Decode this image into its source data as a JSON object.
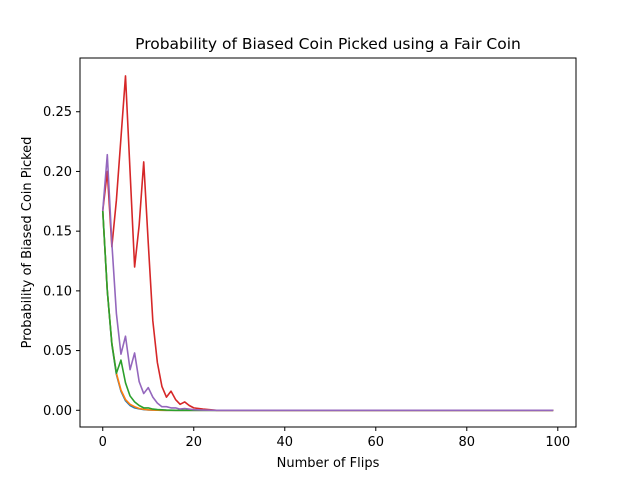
{
  "chart_data": {
    "type": "line",
    "title": "Probability of Biased Coin Picked using a Fair Coin",
    "xlabel": "Number of Flips",
    "ylabel": "Probability of Biased Coin Picked",
    "xlim": [
      -5,
      104
    ],
    "ylim": [
      -0.014,
      0.295
    ],
    "x_ticks": [
      0,
      20,
      40,
      60,
      80,
      100
    ],
    "x_tick_labels": [
      "0",
      "20",
      "40",
      "60",
      "80",
      "100"
    ],
    "y_ticks": [
      0.0,
      0.05,
      0.1,
      0.15,
      0.2,
      0.25
    ],
    "y_tick_labels": [
      "0.00",
      "0.05",
      "0.10",
      "0.15",
      "0.20",
      "0.25"
    ],
    "grid": false,
    "legend": "none",
    "series": [
      {
        "color": "#1f77b4",
        "x": [
          0,
          1,
          2,
          3,
          4,
          5,
          6,
          7,
          8,
          9,
          10,
          12,
          14,
          16,
          18,
          20,
          25,
          99
        ],
        "values": [
          0.167,
          0.1,
          0.055,
          0.03,
          0.016,
          0.008,
          0.004,
          0.002,
          0.0012,
          0.0006,
          0.0003,
          0.0001,
          0.0,
          0.0,
          0.0,
          0.0,
          0.0,
          0.0
        ]
      },
      {
        "color": "#ff7f0e",
        "x": [
          0,
          1,
          2,
          3,
          4,
          5,
          6,
          7,
          8,
          9,
          10,
          12,
          14,
          16,
          20,
          25,
          99
        ],
        "values": [
          0.167,
          0.1,
          0.056,
          0.031,
          0.017,
          0.009,
          0.005,
          0.003,
          0.0015,
          0.0008,
          0.0004,
          0.0001,
          0.0,
          0.0,
          0.0,
          0.0,
          0.0
        ]
      },
      {
        "color": "#2ca02c",
        "x": [
          0,
          1,
          2,
          3,
          4,
          5,
          6,
          7,
          8,
          9,
          10,
          11,
          12,
          14,
          16,
          20,
          25,
          99
        ],
        "values": [
          0.167,
          0.1,
          0.056,
          0.031,
          0.042,
          0.023,
          0.012,
          0.007,
          0.004,
          0.002,
          0.002,
          0.001,
          0.0006,
          0.0002,
          0.0,
          0.0,
          0.0,
          0.0
        ]
      },
      {
        "color": "#d62728",
        "x": [
          0,
          1,
          2,
          3,
          4,
          5,
          6,
          7,
          8,
          9,
          10,
          11,
          12,
          13,
          14,
          15,
          16,
          17,
          18,
          19,
          20,
          22,
          25,
          99
        ],
        "values": [
          0.167,
          0.2,
          0.137,
          0.176,
          0.228,
          0.28,
          0.2,
          0.12,
          0.155,
          0.208,
          0.14,
          0.075,
          0.04,
          0.02,
          0.011,
          0.016,
          0.009,
          0.005,
          0.007,
          0.004,
          0.002,
          0.001,
          0.0,
          0.0
        ]
      },
      {
        "color": "#9467bd",
        "x": [
          0,
          1,
          2,
          3,
          4,
          5,
          6,
          7,
          8,
          9,
          10,
          11,
          12,
          13,
          14,
          15,
          16,
          17,
          18,
          20,
          22,
          25,
          99
        ],
        "values": [
          0.167,
          0.214,
          0.14,
          0.081,
          0.047,
          0.062,
          0.034,
          0.048,
          0.024,
          0.014,
          0.019,
          0.011,
          0.006,
          0.003,
          0.003,
          0.002,
          0.002,
          0.001,
          0.0015,
          0.0005,
          0.0002,
          0.0,
          0.0
        ]
      }
    ]
  }
}
